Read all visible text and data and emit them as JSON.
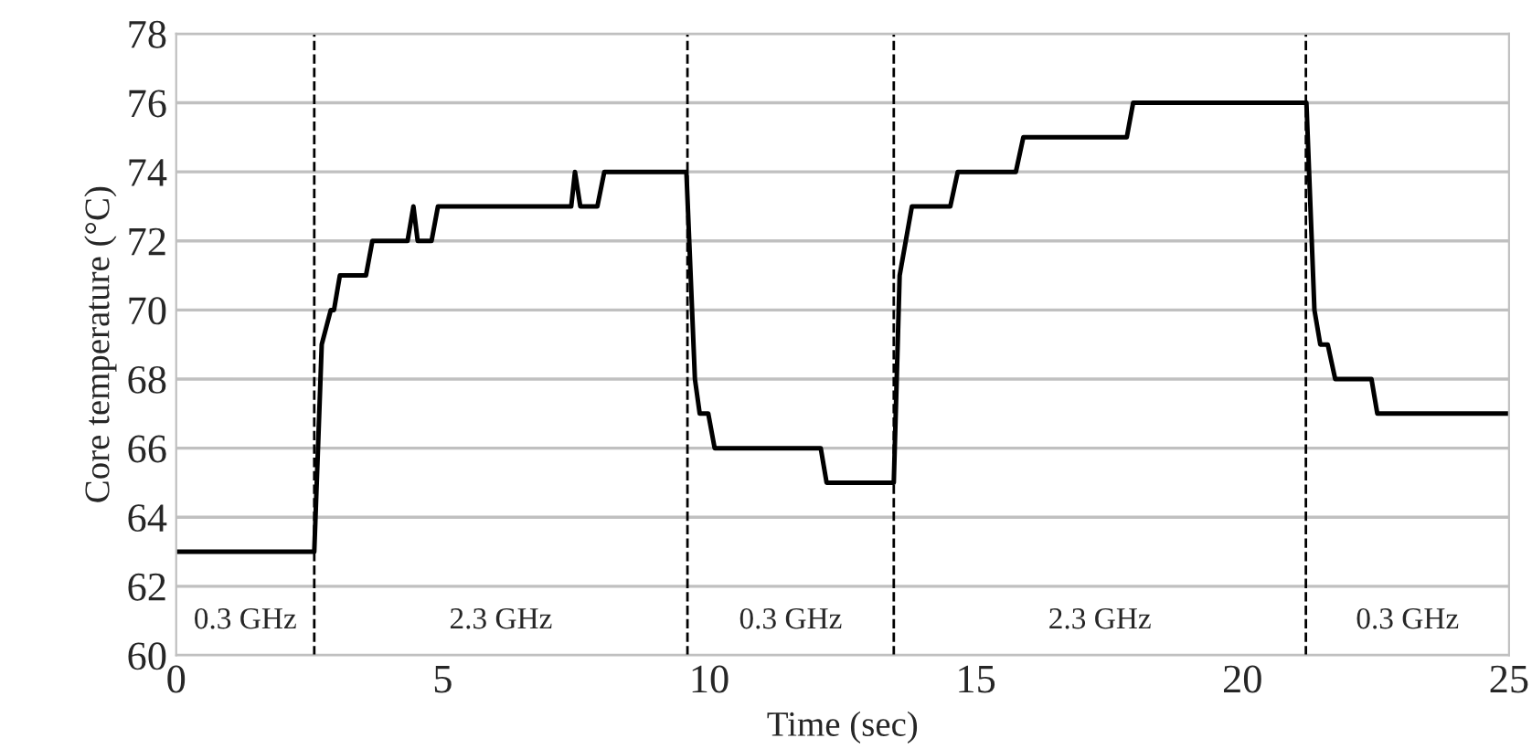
{
  "chart_data": {
    "type": "line",
    "xlabel": "Time (sec)",
    "ylabel": "Core temperature (°C)",
    "series": [
      {
        "color": "#000000",
        "x": [
          0,
          2.59,
          2.73,
          2.9,
          2.96,
          3.07,
          3.56,
          3.68,
          4.34,
          4.45,
          4.53,
          4.79,
          4.91,
          7.41,
          7.48,
          7.58,
          7.9,
          8.03,
          9.57,
          9.73,
          9.82,
          9.98,
          10.1,
          12.09,
          12.2,
          13.46,
          13.57,
          13.8,
          14.52,
          14.66,
          15.75,
          15.89,
          17.83,
          17.95,
          21.2,
          21.35,
          21.46,
          21.6,
          21.74,
          22.42,
          22.53,
          25
        ],
        "values": [
          63,
          63,
          69,
          70,
          70,
          71,
          71,
          72,
          72,
          73,
          72,
          72,
          73,
          73,
          74,
          73,
          73,
          74,
          74,
          68,
          67,
          67,
          66,
          66,
          65,
          65,
          71,
          73,
          73,
          74,
          74,
          75,
          75,
          76,
          76,
          70,
          69,
          69,
          68,
          68,
          67,
          67
        ]
      }
    ],
    "xlim": [
      0,
      25
    ],
    "ylim": [
      60,
      78
    ],
    "xticks": [
      0,
      5,
      10,
      15,
      20,
      25
    ],
    "yticks": [
      60,
      62,
      64,
      66,
      68,
      70,
      72,
      74,
      76,
      78
    ],
    "grid": "y",
    "marker": "none",
    "line_style": "solid",
    "ref_lines": [
      {
        "axis": "x",
        "value": 2.59,
        "color": "#000000",
        "line_style": "dashed"
      },
      {
        "axis": "x",
        "value": 9.59,
        "color": "#000000",
        "line_style": "dashed"
      },
      {
        "axis": "x",
        "value": 13.46,
        "color": "#000000",
        "line_style": "dashed"
      },
      {
        "axis": "x",
        "value": 21.19,
        "color": "#000000",
        "line_style": "dashed"
      }
    ],
    "annotations": [
      "0.3 GHz",
      "2.3 GHz",
      "0.3 GHz",
      "2.3 GHz",
      "0.3 GHz"
    ]
  }
}
